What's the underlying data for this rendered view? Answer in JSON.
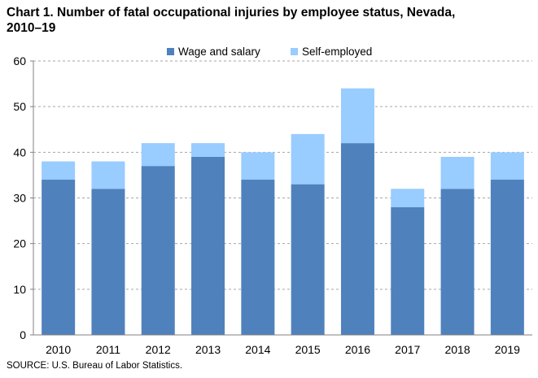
{
  "title_line1": "Chart 1. Number of fatal occupational injuries by employee status, Nevada,",
  "title_line2": "2010–19",
  "source": "SOURCE: U.S. Bureau of Labor Statistics.",
  "colors": {
    "wage_and_salary": "#4f81bd",
    "self_employed": "#99ccff",
    "gridline": "#a6a6a6",
    "axis": "#808080"
  },
  "chart_data": {
    "type": "bar",
    "stacked": true,
    "title": "Chart 1. Number of fatal occupational injuries by employee status, Nevada, 2010–19",
    "xlabel": "",
    "ylabel": "",
    "categories": [
      "2010",
      "2011",
      "2012",
      "2013",
      "2014",
      "2015",
      "2016",
      "2017",
      "2018",
      "2019"
    ],
    "series": [
      {
        "name": "Wage and salary",
        "values": [
          34,
          32,
          37,
          39,
          34,
          33,
          42,
          28,
          32,
          34
        ]
      },
      {
        "name": "Self-employed",
        "values": [
          4,
          6,
          5,
          3,
          6,
          11,
          12,
          4,
          7,
          6
        ]
      }
    ],
    "ylim": [
      0,
      60
    ],
    "yticks": [
      0,
      10,
      20,
      30,
      40,
      50,
      60
    ],
    "grid": true,
    "legend_position": "top"
  }
}
